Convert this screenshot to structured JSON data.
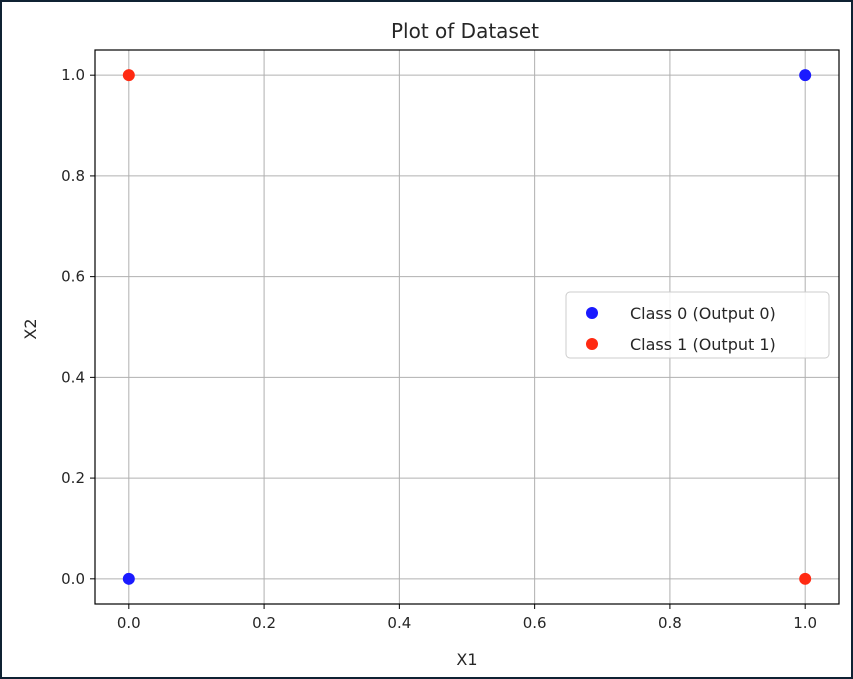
{
  "chart_data": {
    "type": "scatter",
    "title": "Plot of Dataset",
    "xlabel": "X1",
    "ylabel": "X2",
    "xlim": [
      -0.05,
      1.05
    ],
    "ylim": [
      -0.05,
      1.05
    ],
    "xticks": [
      "0.0",
      "0.2",
      "0.4",
      "0.6",
      "0.8",
      "1.0"
    ],
    "yticks": [
      "0.0",
      "0.2",
      "0.4",
      "0.6",
      "0.8",
      "1.0"
    ],
    "grid": true,
    "legend_position": "center-right",
    "series": [
      {
        "name": "Class 0 (Output 0)",
        "color": "#1a1aff",
        "points": [
          {
            "x": 0,
            "y": 0
          },
          {
            "x": 1,
            "y": 1
          }
        ]
      },
      {
        "name": "Class 1 (Output 1)",
        "color": "#ff2a12",
        "points": [
          {
            "x": 0,
            "y": 1
          },
          {
            "x": 1,
            "y": 0
          }
        ]
      }
    ]
  }
}
